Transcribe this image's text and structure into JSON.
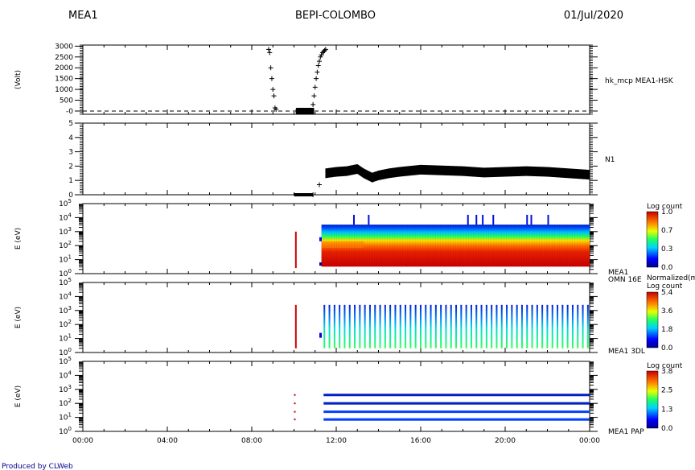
{
  "header": {
    "left": "MEA1",
    "center": "BEPI-COLOMBO",
    "right": "01/Jul/2020"
  },
  "footer": {
    "credit": "Produced by CLWeb"
  },
  "colors": {
    "line": "#000000",
    "red_marker": "#cc0000"
  },
  "chart_data": [
    {
      "type": "scatter",
      "ylabel": "(Volt)",
      "right_label": "hk_mcp MEA1-HSK",
      "ylim": [
        -150,
        3050
      ],
      "yticks": [
        "-0",
        "500",
        "1000",
        "1500",
        "2000",
        "2500",
        "3000"
      ],
      "ytick_values": [
        0,
        500,
        1000,
        1500,
        2000,
        2500,
        3000
      ],
      "reference_line": 0,
      "x": [
        8.8,
        8.85,
        8.9,
        8.95,
        9.0,
        9.05,
        9.1,
        9.15,
        10.1,
        10.4,
        10.7,
        10.9,
        10.95,
        11.0,
        11.05,
        11.1,
        11.15,
        11.2,
        11.25,
        11.3,
        11.35,
        11.4,
        11.45,
        11.5
      ],
      "y": [
        2850,
        2700,
        2000,
        1500,
        1000,
        700,
        150,
        80,
        0,
        0,
        0,
        300,
        700,
        1100,
        1500,
        1800,
        2100,
        2300,
        2500,
        2600,
        2700,
        2750,
        2800,
        2850
      ]
    },
    {
      "type": "line",
      "right_label": "N1",
      "ylim": [
        0,
        5
      ],
      "yticks": [
        "0",
        "1",
        "2",
        "3",
        "4",
        "5"
      ],
      "ytick_values": [
        0,
        1,
        2,
        3,
        4,
        5
      ],
      "x": [
        10.0,
        10.9,
        11.2,
        11.5,
        12.0,
        12.5,
        13.0,
        13.3,
        13.7,
        14.0,
        14.5,
        15.0,
        16.0,
        17.0,
        18.0,
        19.0,
        20.0,
        21.0,
        22.0,
        23.0,
        24.0
      ],
      "y": [
        0,
        0,
        0.7,
        1.5,
        1.6,
        1.65,
        1.8,
        1.5,
        1.2,
        1.35,
        1.5,
        1.6,
        1.75,
        1.7,
        1.65,
        1.55,
        1.6,
        1.65,
        1.6,
        1.5,
        1.4
      ]
    },
    {
      "type": "heatmap",
      "ylabel": "E (eV)",
      "right_label": "MEA1 OMN 16E",
      "scale_title": "Log count",
      "scale_ticks": [
        "0.0",
        "0.3",
        "0.7",
        "1.0"
      ],
      "yticks": [
        "10^0",
        "10^1",
        "10^2",
        "10^3",
        "10^4",
        "10^5"
      ]
    },
    {
      "type": "heatmap",
      "ylabel": "E (eV)",
      "right_label": "MEA1 3DL",
      "scale_title": "Normalized(max) Log count",
      "scale_ticks": [
        "0.0",
        "1.8",
        "3.6",
        "5.4"
      ],
      "yticks": [
        "10^0",
        "10^1",
        "10^2",
        "10^3",
        "10^4",
        "10^5"
      ]
    },
    {
      "type": "heatmap",
      "ylabel": "E (eV)",
      "right_label": "MEA1 PAP",
      "scale_title": "Log count",
      "scale_ticks": [
        "0.0",
        "1.3",
        "2.5",
        "3.8"
      ],
      "yticks": [
        "10^0",
        "10^1",
        "10^2",
        "10^3",
        "10^4",
        "10^5"
      ]
    }
  ],
  "x_axis": {
    "ticks": [
      "00:00",
      "04:00",
      "08:00",
      "12:00",
      "16:00",
      "20:00",
      "00:00"
    ],
    "tick_hours": [
      0,
      4,
      8,
      12,
      16,
      20,
      24
    ],
    "range_hours": [
      0,
      24
    ]
  }
}
